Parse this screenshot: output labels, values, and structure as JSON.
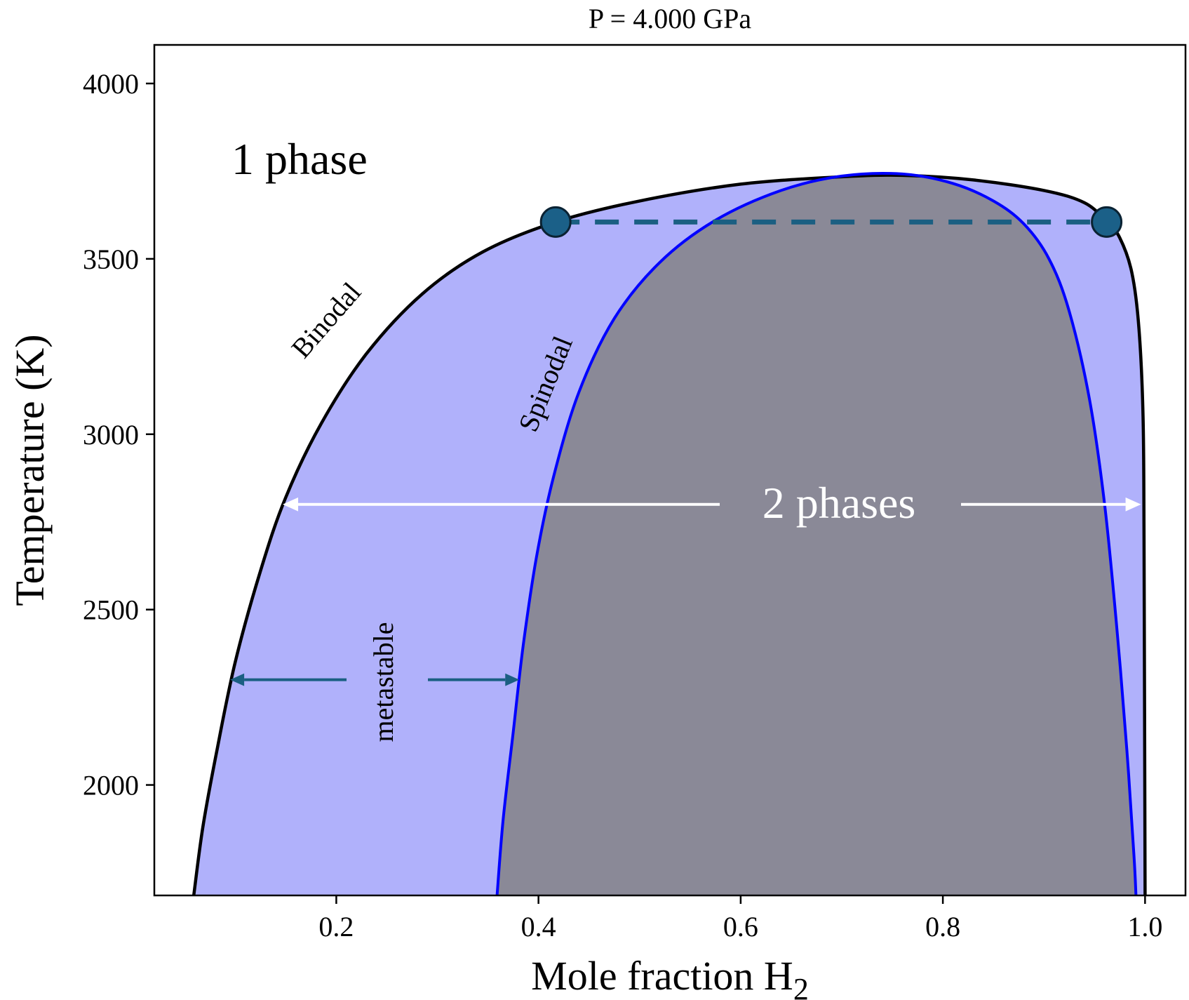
{
  "chart_data": {
    "type": "line",
    "title": "P = 4.000 GPa",
    "xlabel": "Mole fraction H",
    "xlabel_subscript": "2",
    "ylabel": "Temperature (K)",
    "xlim": [
      0.02,
      1.04
    ],
    "ylim": [
      1685,
      4110
    ],
    "x_ticks": [
      {
        "value": 0.2,
        "label": "0.2"
      },
      {
        "value": 0.4,
        "label": "0.4"
      },
      {
        "value": 0.6,
        "label": "0.6"
      },
      {
        "value": 0.8,
        "label": "0.8"
      },
      {
        "value": 1.0,
        "label": "1.0"
      }
    ],
    "y_ticks": [
      {
        "value": 2000,
        "label": "2000"
      },
      {
        "value": 2500,
        "label": "2500"
      },
      {
        "value": 3000,
        "label": "3000"
      },
      {
        "value": 3500,
        "label": "3500"
      },
      {
        "value": 4000,
        "label": "4000"
      }
    ],
    "series": [
      {
        "name": "Binodal",
        "color": "#000000",
        "fill": "#b0b1fb",
        "points": [
          [
            0.059,
            1685
          ],
          [
            0.068,
            1880
          ],
          [
            0.082,
            2100
          ],
          [
            0.1,
            2350
          ],
          [
            0.125,
            2610
          ],
          [
            0.15,
            2820
          ],
          [
            0.185,
            3030
          ],
          [
            0.23,
            3230
          ],
          [
            0.285,
            3400
          ],
          [
            0.345,
            3520
          ],
          [
            0.417,
            3605
          ],
          [
            0.5,
            3665
          ],
          [
            0.6,
            3713
          ],
          [
            0.7,
            3734
          ],
          [
            0.76,
            3738
          ],
          [
            0.83,
            3725
          ],
          [
            0.9,
            3695
          ],
          [
            0.94,
            3660
          ],
          [
            0.962,
            3606
          ],
          [
            0.975,
            3560
          ],
          [
            0.987,
            3460
          ],
          [
            0.994,
            3300
          ],
          [
            0.998,
            3050
          ],
          [
            0.999,
            2700
          ],
          [
            1.0,
            1685
          ]
        ]
      },
      {
        "name": "Spinodal",
        "color": "#0000ff",
        "fill": "#8a8997",
        "points": [
          [
            0.359,
            1685
          ],
          [
            0.365,
            1900
          ],
          [
            0.375,
            2150
          ],
          [
            0.385,
            2400
          ],
          [
            0.398,
            2650
          ],
          [
            0.415,
            2880
          ],
          [
            0.44,
            3120
          ],
          [
            0.475,
            3330
          ],
          [
            0.52,
            3490
          ],
          [
            0.575,
            3610
          ],
          [
            0.64,
            3695
          ],
          [
            0.7,
            3736
          ],
          [
            0.76,
            3742
          ],
          [
            0.81,
            3715
          ],
          [
            0.85,
            3665
          ],
          [
            0.88,
            3600
          ],
          [
            0.905,
            3500
          ],
          [
            0.925,
            3350
          ],
          [
            0.945,
            3100
          ],
          [
            0.96,
            2800
          ],
          [
            0.972,
            2450
          ],
          [
            0.982,
            2100
          ],
          [
            0.989,
            1800
          ],
          [
            0.991,
            1685
          ]
        ]
      }
    ],
    "tie_line": {
      "x": [
        0.417,
        0.962
      ],
      "y": 3605,
      "color": "#1b5f82",
      "marker_color": "#1b6088"
    },
    "annotations": {
      "one_phase": "1 phase",
      "two_phases": "2 phases",
      "binodal": "Binodal",
      "spinodal": "Spinodal",
      "metastable": "metastable"
    },
    "arrows": {
      "two_phases": {
        "from": 0.147,
        "to": 0.996,
        "y": 2800,
        "color": "#ffffff"
      },
      "metastable": {
        "from": 0.095,
        "to": 0.381,
        "y": 2300,
        "color": "#1b5f82"
      }
    }
  }
}
